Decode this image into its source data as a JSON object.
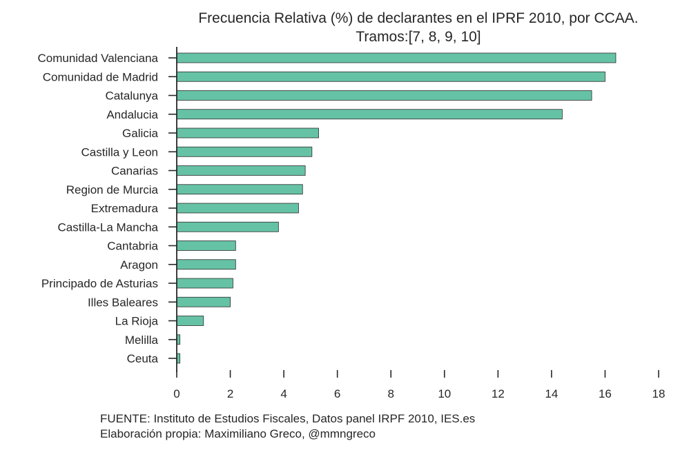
{
  "chart_data": {
    "type": "bar",
    "orientation": "horizontal",
    "title_line1": "Frecuencia Relativa (%) de declarantes en el IPRF 2010, por CCAA.",
    "title_line2": "Tramos:[7, 8, 9, 10]",
    "xlabel": "",
    "ylabel": "",
    "categories": [
      "Comunidad Valenciana",
      "Comunidad de Madrid",
      "Catalunya",
      "Andalucia",
      "Galicia",
      "Castilla y Leon",
      "Canarias",
      "Region de Murcia",
      "Extremadura",
      "Castilla-La Mancha",
      "Cantabria",
      "Aragon",
      "Principado de Asturias",
      "Illes Baleares",
      "La Rioja",
      "Melilla",
      "Ceuta"
    ],
    "values": [
      16.4,
      16.0,
      15.5,
      14.4,
      5.3,
      5.05,
      4.8,
      4.7,
      4.55,
      3.8,
      2.2,
      2.2,
      2.1,
      2.0,
      1.0,
      0.12,
      0.12
    ],
    "xlim": [
      0,
      18
    ],
    "xticks": [
      "0",
      "2",
      "4",
      "6",
      "8",
      "10",
      "12",
      "14",
      "16",
      "18"
    ],
    "grid": false,
    "bar_color": "#66c2a5",
    "bar_edge_color": "#2b2b2b",
    "axis_color": "#262626"
  },
  "source_line1": "FUENTE: Instituto de Estudios Fiscales, Datos panel IRPF 2010, IES.es",
  "source_line2": "Elaboración propia: Maximiliano Greco, @mmngreco"
}
